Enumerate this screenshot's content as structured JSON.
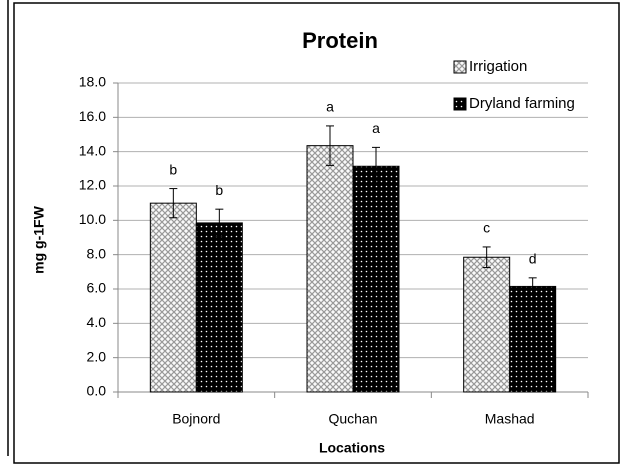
{
  "chart_data": {
    "type": "bar",
    "title": "Protein",
    "x_label": "Locations",
    "y_label": "mg g-1FW",
    "categories": [
      "Bojnord",
      "Quchan",
      "Mashad"
    ],
    "series": [
      {
        "name": "Irrigation",
        "color": "#d9d9d9",
        "values": [
          11.0,
          14.35,
          7.85
        ],
        "errors": [
          0.85,
          1.15,
          0.6
        ],
        "letters": [
          "b",
          "a",
          "c"
        ]
      },
      {
        "name": "Dryland farming",
        "color": "#000000",
        "values": [
          9.85,
          13.15,
          6.15
        ],
        "errors": [
          0.8,
          1.1,
          0.5
        ],
        "letters": [
          "b",
          "a",
          "d"
        ]
      }
    ],
    "ylim": [
      0,
      18
    ],
    "yticks": [
      {
        "value": 0,
        "label": "0.0"
      },
      {
        "value": 2,
        "label": "2.0"
      },
      {
        "value": 4,
        "label": "4.0"
      },
      {
        "value": 6,
        "label": "6.0"
      },
      {
        "value": 8,
        "label": "8.0"
      },
      {
        "value": 10,
        "label": "10.0"
      },
      {
        "value": 12,
        "label": "12.0"
      },
      {
        "value": 14,
        "label": "14.0"
      },
      {
        "value": 16,
        "label": "16.0"
      },
      {
        "value": 18,
        "label": "18.0"
      }
    ],
    "grid": true,
    "legend": "top-right"
  }
}
